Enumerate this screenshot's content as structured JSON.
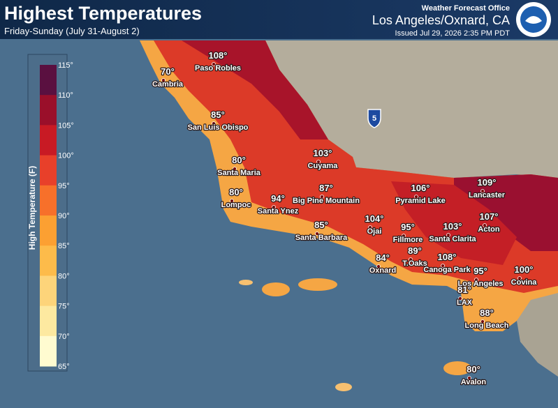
{
  "header": {
    "title": "Highest Temperatures",
    "subtitle": "Friday-Sunday (July 31-August 2)",
    "office": "Weather Forecast Office",
    "location": "Los Angeles/Oxnard, CA",
    "issued": "Issued Jul 29, 2026 2:35 PM PDT"
  },
  "legend": {
    "label": "High Temperature (F)",
    "ticks": [
      "115°",
      "110°",
      "105°",
      "100°",
      "95°",
      "90°",
      "85°",
      "80°",
      "75°",
      "70°",
      "65°"
    ]
  },
  "highway": "5",
  "cities": [
    {
      "temp": "108°",
      "name": "Paso Robles"
    },
    {
      "temp": "70°",
      "name": "Cambria"
    },
    {
      "temp": "85°",
      "name": "San Luis Obispo"
    },
    {
      "temp": "80°",
      "name": "Santa Maria"
    },
    {
      "temp": "103°",
      "name": "Cuyama"
    },
    {
      "temp": "80°",
      "name": "Lompoc"
    },
    {
      "temp": "94°",
      "name": "Santa Ynez"
    },
    {
      "temp": "87°",
      "name": "Big Pine Mountain"
    },
    {
      "temp": "106°",
      "name": "Pyramid Lake"
    },
    {
      "temp": "109°",
      "name": "Lancaster"
    },
    {
      "temp": "85°",
      "name": "Santa Barbara"
    },
    {
      "temp": "104°",
      "name": "Ojai"
    },
    {
      "temp": "95°",
      "name": "Fillmore"
    },
    {
      "temp": "103°",
      "name": "Santa Clarita"
    },
    {
      "temp": "107°",
      "name": "Acton"
    },
    {
      "temp": "84°",
      "name": "Oxnard"
    },
    {
      "temp": "89°",
      "name": "T.Oaks"
    },
    {
      "temp": "108°",
      "name": "Canoga Park"
    },
    {
      "temp": "95°",
      "name": "Los Angeles"
    },
    {
      "temp": "100°",
      "name": "Covina"
    },
    {
      "temp": "81°",
      "name": "LAX"
    },
    {
      "temp": "88°",
      "name": "Long Beach"
    },
    {
      "temp": "80°",
      "name": "Avalon"
    }
  ]
}
